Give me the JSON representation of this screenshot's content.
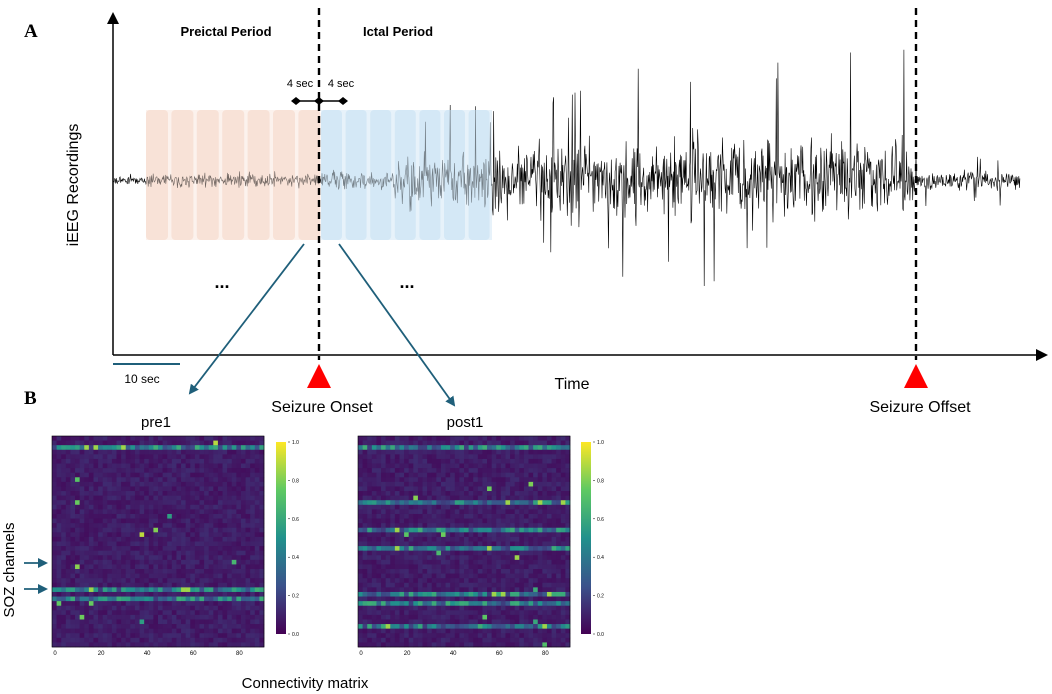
{
  "panel_a": {
    "label": "A",
    "y_axis_label": "iEEG Recordings",
    "x_axis_label": "Time",
    "preictal_label": "Preictal Period",
    "ictal_label": "Ictal Period",
    "window_left": "4 sec",
    "window_right": "4 sec",
    "scale_bar": "10 sec",
    "ellipsis": "...",
    "seizure_onset": "Seizure Onset",
    "seizure_offset": "Seizure Offset",
    "colors": {
      "preictal_window": "#f8e2d8",
      "ictal_window": "#d4e8f6",
      "arrow": "#1f5f7a",
      "marker": "#ff0000"
    }
  },
  "panel_b": {
    "label": "B",
    "y_axis_label": "SOZ channels",
    "x_axis_label": "Connectivity matrix",
    "matrices": [
      {
        "title": "pre1",
        "x_ticks": [
          "0",
          "20",
          "40",
          "60",
          "80"
        ],
        "colorbar_ticks": [
          "1.0",
          "0.8",
          "0.6",
          "0.4",
          "0.2",
          "0.0"
        ]
      },
      {
        "title": "post1",
        "x_ticks": [
          "0",
          "20",
          "40",
          "60",
          "80"
        ],
        "colorbar_ticks": [
          "1.0",
          "0.8",
          "0.6",
          "0.4",
          "0.2",
          "0.0"
        ]
      }
    ],
    "colors": {
      "low": "#440154",
      "mid": "#21918c",
      "high": "#fde725"
    }
  }
}
